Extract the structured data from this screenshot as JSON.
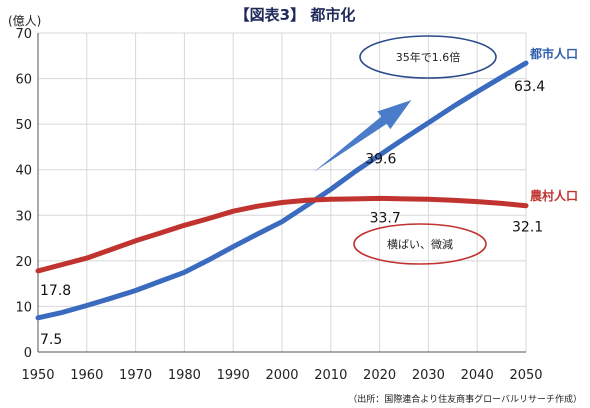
{
  "chart_data": {
    "type": "line",
    "title": "【図表3】 都市化",
    "ylabel": "(億人)",
    "xlabel": "",
    "x": [
      1950,
      1955,
      1960,
      1965,
      1970,
      1975,
      1980,
      1985,
      1990,
      1995,
      2000,
      2005,
      2010,
      2015,
      2020,
      2025,
      2030,
      2035,
      2040,
      2045,
      2050
    ],
    "xticks": [
      1950,
      1960,
      1970,
      1980,
      1990,
      2000,
      2010,
      2020,
      2030,
      2040,
      2050
    ],
    "yticks": [
      0,
      10,
      20,
      30,
      40,
      50,
      60,
      70
    ],
    "xlim": [
      1950,
      2050
    ],
    "ylim": [
      0,
      70
    ],
    "grid": true,
    "series": [
      {
        "name": "都市人口",
        "color": "#3a6bbf",
        "values": [
          7.5,
          8.7,
          10.2,
          11.8,
          13.5,
          15.5,
          17.5,
          20.2,
          23.1,
          25.9,
          28.6,
          32.1,
          35.7,
          39.6,
          43.2,
          46.8,
          50.3,
          53.8,
          57.1,
          60.3,
          63.4
        ]
      },
      {
        "name": "農村人口",
        "color": "#c0332f",
        "values": [
          17.8,
          19.2,
          20.6,
          22.5,
          24.4,
          26.1,
          27.8,
          29.3,
          30.9,
          32.0,
          32.8,
          33.3,
          33.5,
          33.6,
          33.7,
          33.6,
          33.5,
          33.3,
          33.0,
          32.6,
          32.1
        ]
      }
    ],
    "data_labels": [
      {
        "text": "7.5",
        "series": 0,
        "x": 1950
      },
      {
        "text": "17.8",
        "series": 1,
        "x": 1950
      },
      {
        "text": "39.6",
        "series": 0,
        "x": 2015
      },
      {
        "text": "33.7",
        "series": 1,
        "x": 2020
      },
      {
        "text": "63.4",
        "series": 0,
        "x": 2050
      },
      {
        "text": "32.1",
        "series": 1,
        "x": 2050
      }
    ],
    "annotations": [
      {
        "text": "35年で1.6倍",
        "shape": "ellipse",
        "color": "#2a4a8a"
      },
      {
        "text": "横ばい、微減",
        "shape": "ellipse",
        "color": "#c0332f"
      }
    ],
    "trend_arrow_color": "#4a7cc9",
    "source": "（出所：国際連合より住友商事グローバルリサーチ作成）"
  }
}
